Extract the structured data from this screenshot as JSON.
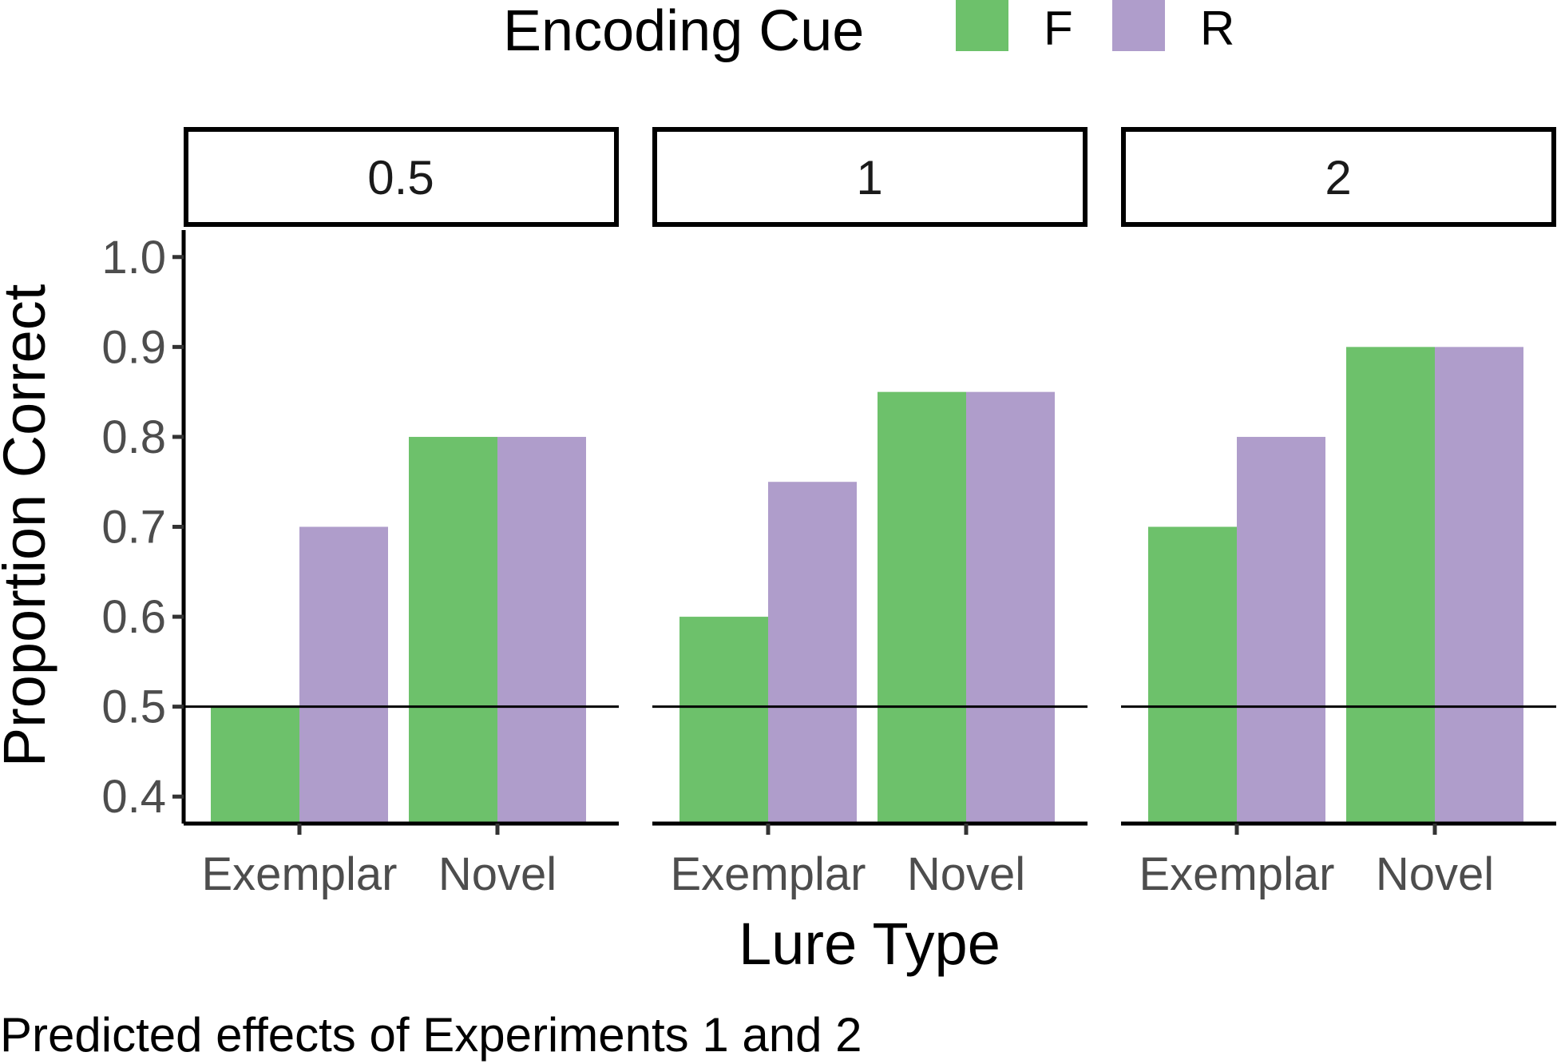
{
  "chart_data": {
    "type": "bar",
    "facet_variable_values": [
      "0.5",
      "1",
      "2"
    ],
    "categories": [
      "Exemplar",
      "Novel"
    ],
    "series": [
      {
        "name": "F",
        "color": "#6DC16B"
      },
      {
        "name": "R",
        "color": "#AF9DCB"
      }
    ],
    "panels": [
      {
        "facet": "0.5",
        "values": {
          "F": [
            0.5,
            0.8
          ],
          "R": [
            0.7,
            0.8
          ]
        }
      },
      {
        "facet": "1",
        "values": {
          "F": [
            0.6,
            0.85
          ],
          "R": [
            0.75,
            0.85
          ]
        }
      },
      {
        "facet": "2",
        "values": {
          "F": [
            0.7,
            0.9
          ],
          "R": [
            0.8,
            0.9
          ]
        }
      }
    ],
    "reference_line": 0.5,
    "xlabel": "Lure Type",
    "ylabel": "Proportion Correct",
    "ylim": [
      0.37,
      1.03
    ],
    "yticks": [
      "1.0",
      "0.9",
      "0.8",
      "0.7",
      "0.6",
      "0.5",
      "0.4"
    ],
    "ytick_values": [
      1.0,
      0.9,
      0.8,
      0.7,
      0.6,
      0.5,
      0.4
    ],
    "legend": {
      "title": "Encoding Cue",
      "position": "top"
    },
    "caption": "Predicted effects of Experiments 1 and 2",
    "grid": false
  }
}
